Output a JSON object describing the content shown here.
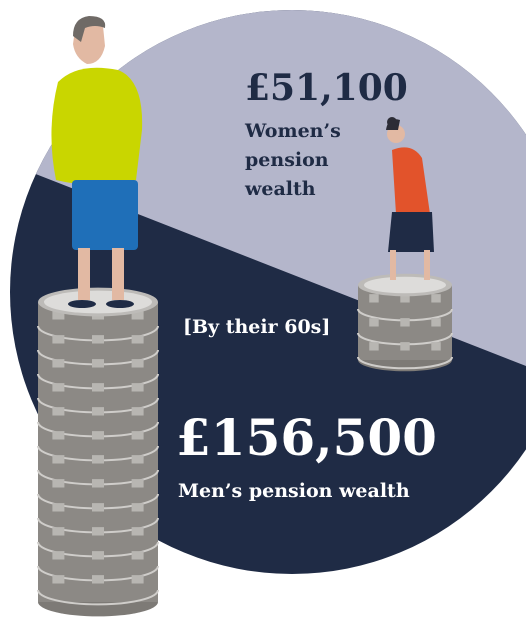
{
  "women": {
    "amount": "£51,100",
    "label_lines": [
      "Women’s",
      "pension",
      "wealth"
    ]
  },
  "note": "[By their 60s]",
  "men": {
    "amount": "£156,500",
    "label": "Men’s pension wealth"
  }
}
